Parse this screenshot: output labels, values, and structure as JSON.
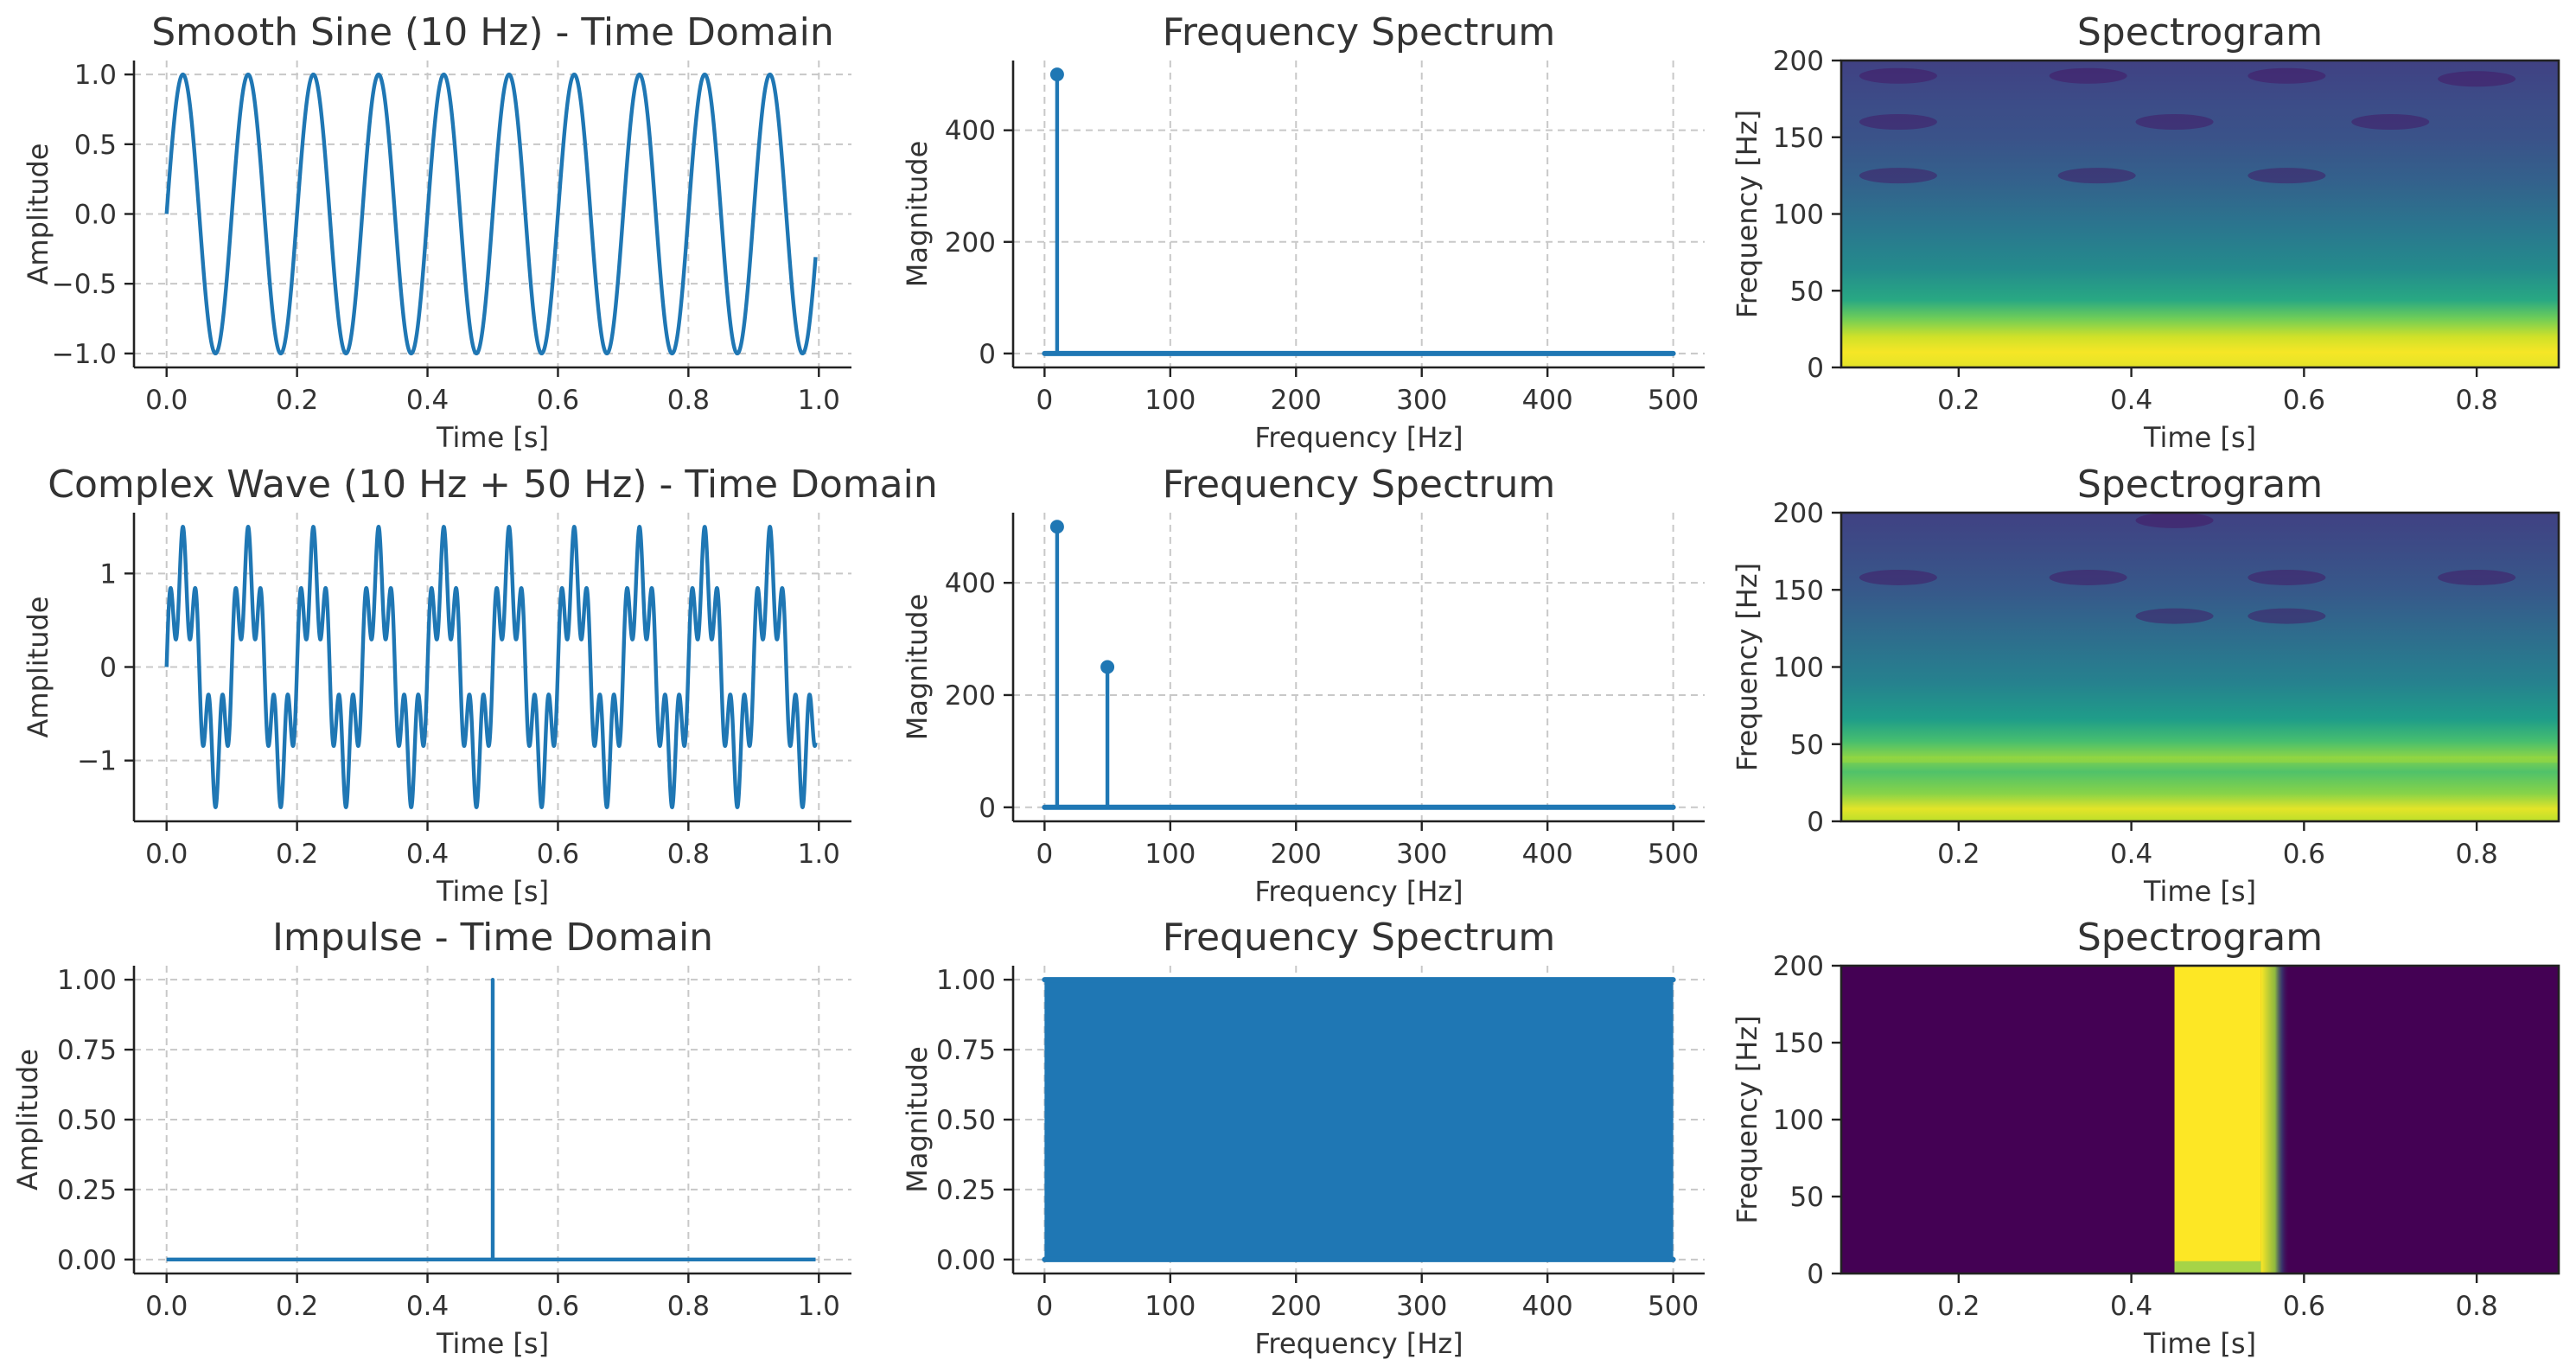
{
  "chart_data": [
    {
      "id": "r0c0",
      "type": "line",
      "title": "Smooth Sine (10 Hz) - Time Domain",
      "xlabel": "Time [s]",
      "ylabel": "Amplitude",
      "xlim": [
        -0.05,
        1.05
      ],
      "ylim": [
        -1.1,
        1.1
      ],
      "xticks": [
        0.0,
        0.2,
        0.4,
        0.6,
        0.8,
        1.0
      ],
      "xtick_labels": [
        "0.0",
        "0.2",
        "0.4",
        "0.6",
        "0.8",
        "1.0"
      ],
      "yticks": [
        1.0,
        0.5,
        0.0,
        -0.5,
        -1.0
      ],
      "ytick_labels": [
        "1.0",
        "0.5",
        "0.0",
        "−0.5",
        "−1.0"
      ],
      "grid": true,
      "series": [
        {
          "components": [
            {
              "frequency_hz": 10,
              "amplitude": 1.0
            }
          ],
          "x_range": [
            0,
            0.995
          ]
        }
      ]
    },
    {
      "id": "r0c1",
      "type": "stem",
      "title": "Frequency Spectrum",
      "xlabel": "Frequency [Hz]",
      "ylabel": "Magnitude",
      "xlim": [
        -25,
        525
      ],
      "ylim": [
        -25,
        525
      ],
      "xticks": [
        0,
        100,
        200,
        300,
        400,
        500
      ],
      "xtick_labels": [
        "0",
        "100",
        "200",
        "300",
        "400",
        "500"
      ],
      "yticks": [
        400,
        200,
        0
      ],
      "ytick_labels": [
        "400",
        "200",
        "0"
      ],
      "grid": true,
      "baseline": {
        "from_hz": 0,
        "to_hz": 500,
        "value": 0
      },
      "peaks": [
        {
          "x": 10,
          "y": 500
        }
      ]
    },
    {
      "id": "r0c2",
      "type": "heatmap",
      "title": "Spectrogram",
      "xlabel": "Time [s]",
      "ylabel": "Frequency [Hz]",
      "xlim": [
        0.064,
        0.895
      ],
      "ylim": [
        0,
        200
      ],
      "xticks": [
        0.2,
        0.4,
        0.6,
        0.8
      ],
      "xtick_labels": [
        "0.2",
        "0.4",
        "0.6",
        "0.8"
      ],
      "yticks": [
        200,
        150,
        100,
        50,
        0
      ],
      "ytick_labels": [
        "200",
        "150",
        "100",
        "50",
        "0"
      ],
      "colormap": "viridis",
      "pattern": "tone"
    },
    {
      "id": "r1c0",
      "type": "line",
      "title": "Complex Wave (10 Hz + 50 Hz) - Time Domain",
      "xlabel": "Time [s]",
      "ylabel": "Amplitude",
      "xlim": [
        -0.05,
        1.05
      ],
      "ylim": [
        -1.65,
        1.65
      ],
      "xticks": [
        0.0,
        0.2,
        0.4,
        0.6,
        0.8,
        1.0
      ],
      "xtick_labels": [
        "0.0",
        "0.2",
        "0.4",
        "0.6",
        "0.8",
        "1.0"
      ],
      "yticks": [
        1,
        0,
        -1
      ],
      "ytick_labels": [
        "1",
        "0",
        "−1"
      ],
      "grid": true,
      "series": [
        {
          "components": [
            {
              "frequency_hz": 10,
              "amplitude": 1.0
            },
            {
              "frequency_hz": 50,
              "amplitude": 0.5
            }
          ],
          "x_range": [
            0,
            0.995
          ]
        }
      ]
    },
    {
      "id": "r1c1",
      "type": "stem",
      "title": "Frequency Spectrum",
      "xlabel": "Frequency [Hz]",
      "ylabel": "Magnitude",
      "xlim": [
        -25,
        525
      ],
      "ylim": [
        -25,
        525
      ],
      "xticks": [
        0,
        100,
        200,
        300,
        400,
        500
      ],
      "xtick_labels": [
        "0",
        "100",
        "200",
        "300",
        "400",
        "500"
      ],
      "yticks": [
        400,
        200,
        0
      ],
      "ytick_labels": [
        "400",
        "200",
        "0"
      ],
      "grid": true,
      "baseline": {
        "from_hz": 0,
        "to_hz": 500,
        "value": 0
      },
      "peaks": [
        {
          "x": 10,
          "y": 500
        },
        {
          "x": 50,
          "y": 250
        }
      ]
    },
    {
      "id": "r1c2",
      "type": "heatmap",
      "title": "Spectrogram",
      "xlabel": "Time [s]",
      "ylabel": "Frequency [Hz]",
      "xlim": [
        0.064,
        0.895
      ],
      "ylim": [
        0,
        200
      ],
      "xticks": [
        0.2,
        0.4,
        0.6,
        0.8
      ],
      "xtick_labels": [
        "0.2",
        "0.4",
        "0.6",
        "0.8"
      ],
      "yticks": [
        200,
        150,
        100,
        50,
        0
      ],
      "ytick_labels": [
        "200",
        "150",
        "100",
        "50",
        "0"
      ],
      "colormap": "viridis",
      "pattern": "two-tone"
    },
    {
      "id": "r2c0",
      "type": "line",
      "title": "Impulse - Time Domain",
      "xlabel": "Time [s]",
      "ylabel": "Amplitude",
      "xlim": [
        -0.05,
        1.05
      ],
      "ylim": [
        -0.05,
        1.05
      ],
      "xticks": [
        0.0,
        0.2,
        0.4,
        0.6,
        0.8,
        1.0
      ],
      "xtick_labels": [
        "0.0",
        "0.2",
        "0.4",
        "0.6",
        "0.8",
        "1.0"
      ],
      "yticks": [
        1.0,
        0.75,
        0.5,
        0.25,
        0.0
      ],
      "ytick_labels": [
        "1.00",
        "0.75",
        "0.50",
        "0.25",
        "0.00"
      ],
      "grid": true,
      "series": [
        {
          "x": [
            0,
            0.5,
            0.5,
            0.5,
            0.5,
            0.995
          ],
          "y": [
            0,
            0,
            1,
            1,
            0,
            0
          ]
        }
      ]
    },
    {
      "id": "r2c1",
      "type": "stem",
      "title": "Frequency Spectrum",
      "xlabel": "Frequency [Hz]",
      "ylabel": "Magnitude",
      "xlim": [
        -25,
        525
      ],
      "ylim": [
        -0.05,
        1.05
      ],
      "xticks": [
        0,
        100,
        200,
        300,
        400,
        500
      ],
      "xtick_labels": [
        "0",
        "100",
        "200",
        "300",
        "400",
        "500"
      ],
      "yticks": [
        1.0,
        0.75,
        0.5,
        0.25,
        0.0
      ],
      "ytick_labels": [
        "1.00",
        "0.75",
        "0.50",
        "0.25",
        "0.00"
      ],
      "grid": true,
      "baseline": {
        "from_hz": 0,
        "to_hz": 500,
        "value": 0
      },
      "flat_spectrum": {
        "from_hz": 0,
        "to_hz": 500,
        "value": 1.0
      }
    },
    {
      "id": "r2c2",
      "type": "heatmap",
      "title": "Spectrogram",
      "xlabel": "Time [s]",
      "ylabel": "Frequency [Hz]",
      "xlim": [
        0.064,
        0.895
      ],
      "ylim": [
        0,
        200
      ],
      "xticks": [
        0.2,
        0.4,
        0.6,
        0.8
      ],
      "xtick_labels": [
        "0.2",
        "0.4",
        "0.6",
        "0.8"
      ],
      "yticks": [
        200,
        150,
        100,
        50,
        0
      ],
      "ytick_labels": [
        "200",
        "150",
        "100",
        "50",
        "0"
      ],
      "colormap": "viridis",
      "pattern": "impulse",
      "impulse_time_s": 0.5
    }
  ]
}
